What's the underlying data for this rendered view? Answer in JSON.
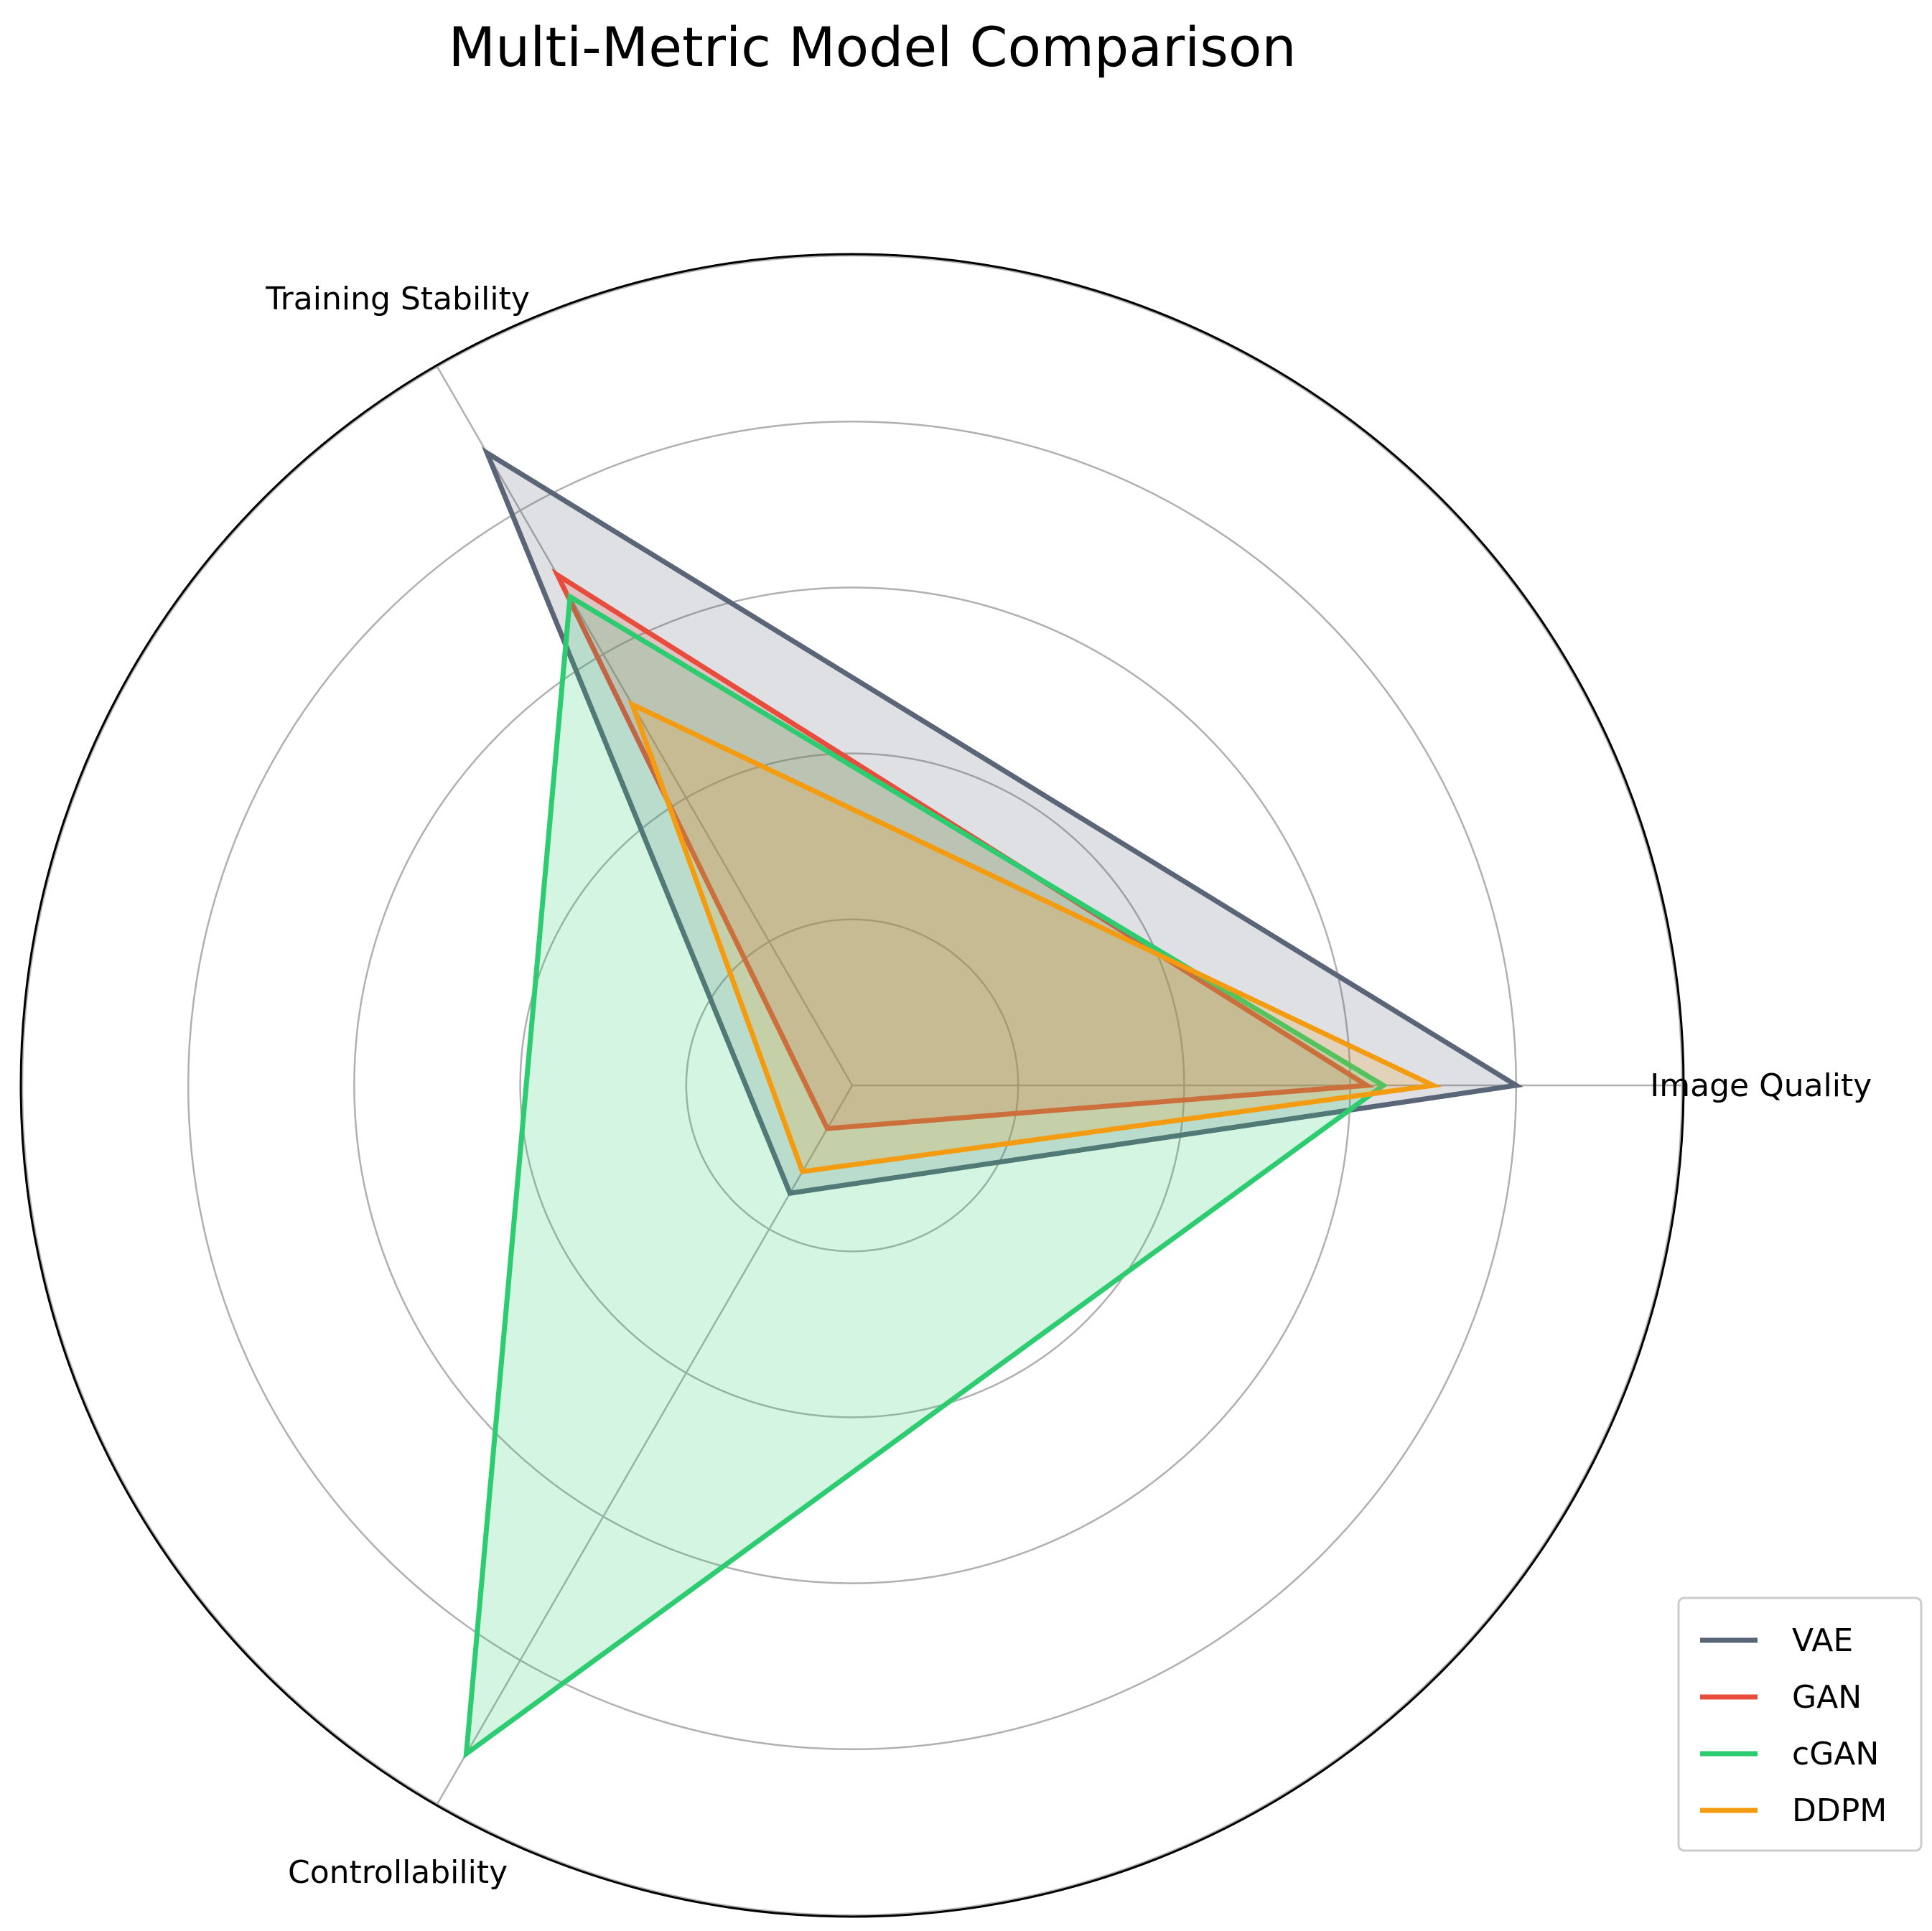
{
  "chart_data": {
    "type": "radar",
    "title": "Multi-Metric Model Comparison",
    "axes": [
      "Image Quality",
      "Training Stability",
      "Controllability"
    ],
    "rmax": 1.0,
    "gridlines": [
      0.2,
      0.4,
      0.6,
      0.8,
      1.0
    ],
    "grid": true,
    "legend_position": "bottom-right",
    "series": [
      {
        "name": "VAE",
        "color": "#5a6577",
        "values": [
          0.8,
          0.88,
          0.15
        ]
      },
      {
        "name": "GAN",
        "color": "#e74c3c",
        "values": [
          0.62,
          0.71,
          0.06
        ]
      },
      {
        "name": "cGAN",
        "color": "#2ecc71",
        "values": [
          0.64,
          0.68,
          0.93
        ]
      },
      {
        "name": "DDPM",
        "color": "#f39c12",
        "values": [
          0.7,
          0.53,
          0.12
        ]
      }
    ]
  }
}
